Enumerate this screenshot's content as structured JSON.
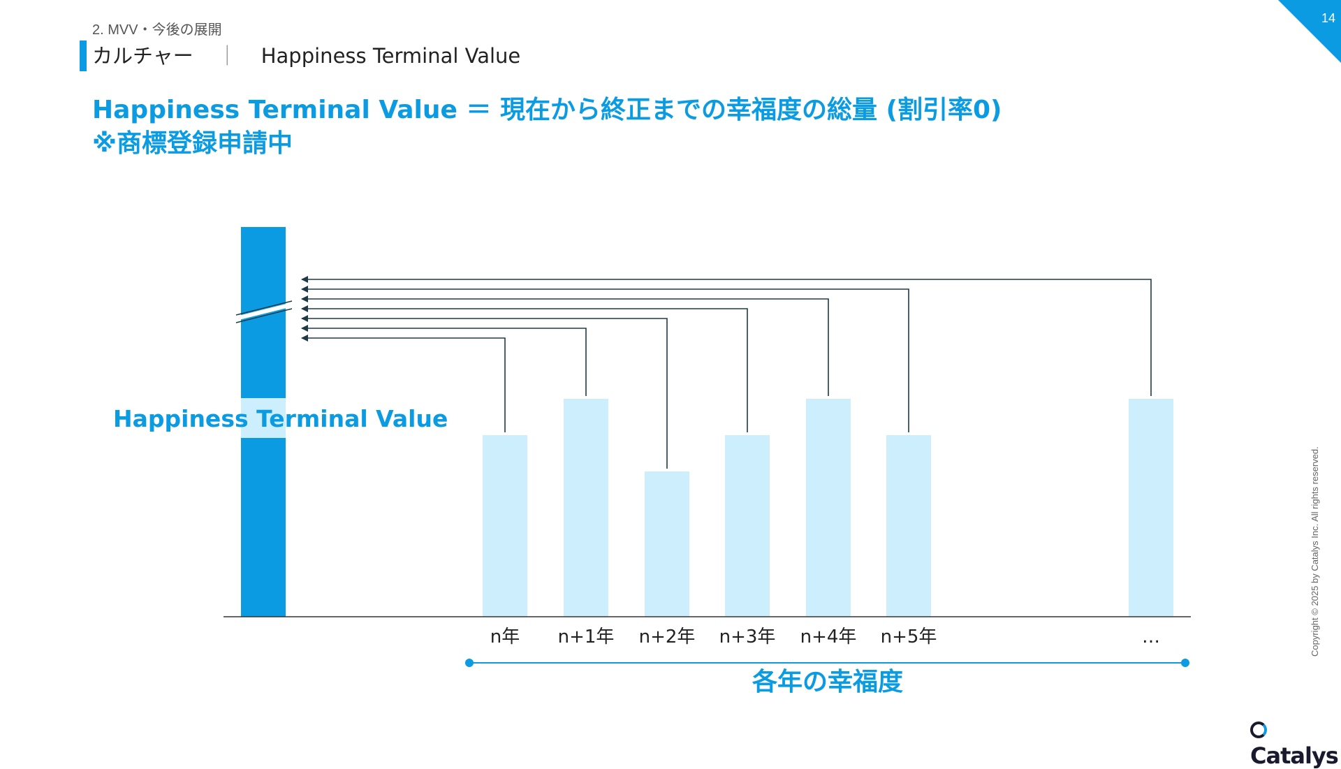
{
  "header": {
    "section": "2. MVV・今後の展開",
    "title": "カルチャー",
    "separator": "｜",
    "subtitle": "Happiness Terminal Value",
    "page_number": "14"
  },
  "headline": {
    "line1": "Happiness Terminal Value ＝ 現在から終正までの幸福度の総量 (割引率0)",
    "line2": "※商標登録申請中"
  },
  "chart_data": {
    "type": "bar",
    "title": "",
    "total_label": "Happiness Terminal Value",
    "categories": [
      "n年",
      "n+1年",
      "n+2年",
      "n+3年",
      "n+4年",
      "n+5年",
      "…"
    ],
    "values": [
      5,
      6,
      4,
      5,
      6,
      5,
      6
    ],
    "ylim": [
      0,
      10
    ],
    "xlabel": "各年の幸福度",
    "axis_break": true
  },
  "colors": {
    "accent": "#0a9be2",
    "bar_light": "#cdeefc",
    "arrow": "#1e3a44"
  },
  "footer": {
    "copyright": "Copyright © 2025 by Catalys Inc. All rights reserved.",
    "logo": "Catalys"
  }
}
